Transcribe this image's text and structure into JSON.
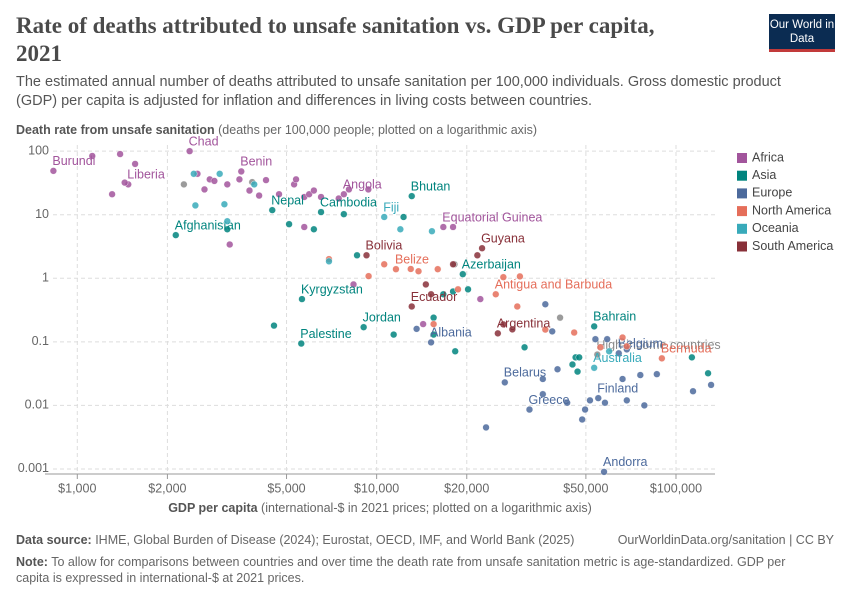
{
  "header": {
    "title": "Rate of deaths attributed to unsafe sanitation vs. GDP per capita, 2021",
    "subtitle": "The estimated annual number of deaths attributed to unsafe sanitation per 100,000 individuals. Gross domestic product (GDP) per capita is adjusted for inflation and differences in living costs between countries.",
    "logo": "Our World in Data"
  },
  "chart_data": {
    "type": "scatter",
    "log_x": true,
    "log_y": true,
    "grid": true,
    "legend": "right",
    "y_label": "Death rate from unsafe sanitation",
    "y_label_note": " (deaths per 100,000 people; plotted on a logarithmic axis)",
    "x_label": "GDP per capita",
    "x_label_note": " (international-$ in 2021 prices; plotted on a logarithmic axis)",
    "xlim": [
      780,
      135000
    ],
    "ylim": [
      0.00067,
      125
    ],
    "xticks": [
      {
        "value": 1000,
        "label": "$1,000"
      },
      {
        "value": 2000,
        "label": "$2,000"
      },
      {
        "value": 5000,
        "label": "$5,000"
      },
      {
        "value": 10000,
        "label": "$10,000"
      },
      {
        "value": 20000,
        "label": "$20,000"
      },
      {
        "value": 50000,
        "label": "$50,000"
      },
      {
        "value": 100000,
        "label": "$100,000"
      }
    ],
    "yticks": [
      0.001,
      0.01,
      0.1,
      1,
      10,
      100
    ],
    "series": [
      {
        "name": "Africa",
        "color": "#a2559c",
        "x": [
          832,
          1122,
          1390,
          1480,
          1307,
          1560,
          1440,
          2373,
          2520,
          2660,
          2770,
          2870,
          3170,
          3480,
          3530,
          3760,
          4050,
          4270,
          4720,
          5300,
          5380,
          5730,
          5950,
          6170,
          6520,
          7770,
          7470,
          8080,
          9380,
          3230,
          5730,
          16700,
          18000,
          8370,
          14300,
          22200
        ],
        "y": [
          49,
          84,
          90,
          30,
          21,
          63,
          32,
          100,
          44,
          25,
          36,
          34,
          30,
          36,
          48,
          24,
          20,
          35,
          21,
          30,
          36,
          19,
          21,
          24,
          19,
          21,
          18,
          25,
          25,
          3.4,
          6.4,
          6.4,
          6.4,
          0.8,
          0.19,
          0.47
        ],
        "point_labels": [
          "Burundi",
          null,
          null,
          "Liberia",
          null,
          null,
          null,
          "Chad",
          null,
          null,
          null,
          null,
          null,
          null,
          "Benin",
          null,
          null,
          null,
          null,
          null,
          null,
          null,
          null,
          null,
          null,
          "Angola",
          null,
          null,
          null,
          null,
          null,
          "Equatorial Guinea",
          null,
          null,
          null,
          null
        ]
      },
      {
        "name": "Asia",
        "color": "#00847e",
        "x": [
          2133,
          3170,
          4480,
          5100,
          6170,
          6520,
          7770,
          13100,
          12300,
          5630,
          4540,
          5600,
          9050,
          11400,
          8600,
          15500,
          19400,
          16700,
          18000,
          20200,
          15500,
          18300,
          53300,
          46200,
          47500,
          45100,
          46900,
          128000,
          113000,
          31200
        ],
        "y": [
          4.77,
          5.9,
          11.8,
          7.1,
          5.9,
          11,
          10.2,
          19.6,
          9.2,
          0.47,
          0.18,
          0.094,
          0.17,
          0.13,
          2.3,
          0.24,
          1.16,
          0.56,
          0.62,
          0.67,
          0.13,
          0.071,
          0.175,
          0.057,
          0.057,
          0.044,
          0.034,
          0.032,
          0.057,
          0.082
        ],
        "point_labels": [
          "Afghanistan",
          null,
          "Nepal",
          null,
          null,
          "Cambodia",
          null,
          "Bhutan",
          null,
          "Kyrgyzstan",
          null,
          "Palestine",
          "Jordan",
          null,
          null,
          null,
          "Azerbaijan",
          null,
          null,
          null,
          null,
          null,
          "Bahrain",
          null,
          null,
          null,
          null,
          null,
          null,
          null
        ]
      },
      {
        "name": "Europe",
        "color": "#4c6a9c",
        "x": [
          36600,
          38600,
          15200,
          13600,
          26800,
          35900,
          40200,
          32400,
          35900,
          43300,
          49700,
          51600,
          55000,
          57900,
          68500,
          78400,
          48600,
          23200,
          57500,
          66300,
          76000,
          86300,
          114000,
          131000,
          64400,
          53800,
          58900,
          68500
        ],
        "y": [
          0.39,
          0.146,
          0.098,
          0.16,
          0.023,
          0.026,
          0.037,
          0.0086,
          0.015,
          0.011,
          0.0086,
          0.012,
          0.013,
          0.011,
          0.012,
          0.01,
          0.006,
          0.0045,
          0.0009,
          0.026,
          0.03,
          0.031,
          0.0167,
          0.021,
          0.066,
          0.11,
          0.11,
          0.076
        ],
        "point_labels": [
          null,
          null,
          "Albania",
          null,
          "Belarus",
          null,
          null,
          "Greece",
          null,
          null,
          null,
          null,
          "Finland",
          null,
          null,
          null,
          null,
          null,
          "Andorra",
          null,
          null,
          null,
          null,
          null,
          "Belgium",
          null,
          null,
          null
        ]
      },
      {
        "name": "North America",
        "color": "#e56e5a",
        "x": [
          11600,
          10600,
          9400,
          6930,
          13800,
          16000,
          25000,
          26500,
          30100,
          18700,
          15500,
          29500,
          36600,
          45700,
          55900,
          66300,
          68500,
          89700,
          13000
        ],
        "y": [
          1.39,
          1.66,
          1.08,
          2.0,
          1.29,
          1.39,
          0.56,
          1.04,
          1.07,
          0.67,
          0.19,
          0.36,
          0.156,
          0.14,
          0.082,
          0.117,
          0.085,
          0.055,
          1.4
        ],
        "point_labels": [
          "Belize",
          null,
          null,
          null,
          null,
          null,
          "Antigua and Barbuda",
          null,
          null,
          null,
          null,
          null,
          null,
          null,
          null,
          null,
          null,
          "Bermuda",
          null
        ]
      },
      {
        "name": "Oceania",
        "color": "#38aaba",
        "x": [
          2450,
          2990,
          3900,
          2480,
          3100,
          10600,
          12000,
          15300,
          6930,
          3170,
          53300,
          59800
        ],
        "y": [
          44,
          44,
          30,
          14,
          14.6,
          9.2,
          5.9,
          5.5,
          1.85,
          7.9,
          0.039,
          0.071
        ],
        "point_labels": [
          null,
          null,
          null,
          null,
          null,
          "Fiji",
          null,
          null,
          null,
          null,
          "Australia",
          null
        ]
      },
      {
        "name": "South America",
        "color": "#883039",
        "x": [
          9250,
          22500,
          21700,
          18000,
          13100,
          14600,
          15200,
          25400,
          28400,
          26500
        ],
        "y": [
          2.3,
          2.97,
          2.3,
          1.66,
          0.36,
          0.8,
          0.56,
          0.136,
          0.157,
          0.188
        ],
        "point_labels": [
          "Bolivia",
          "Guyana",
          null,
          null,
          "Ecuador",
          null,
          null,
          "Argentina",
          null,
          null
        ]
      }
    ],
    "other_points": {
      "color": "#8a8a8a",
      "x": [
        54600,
        2270,
        3840,
        18200,
        41000
      ],
      "y": [
        0.063,
        30,
        32.6,
        1.66,
        0.24
      ],
      "point_labels": [
        "High-income countries",
        null,
        null,
        null,
        null
      ]
    }
  },
  "footer": {
    "source_label": "Data source:",
    "source": " IHME, Global Burden of Disease (2024); Eurostat, OECD, IMF, and World Bank (2025)",
    "url": "OurWorldinData.org/sanitation | CC BY",
    "note_label": "Note:",
    "note": " To allow for comparisons between countries and over time the death rate from unsafe sanitation metric is age-standardized. GDP per capita is expressed in international-$ at 2021 prices."
  }
}
